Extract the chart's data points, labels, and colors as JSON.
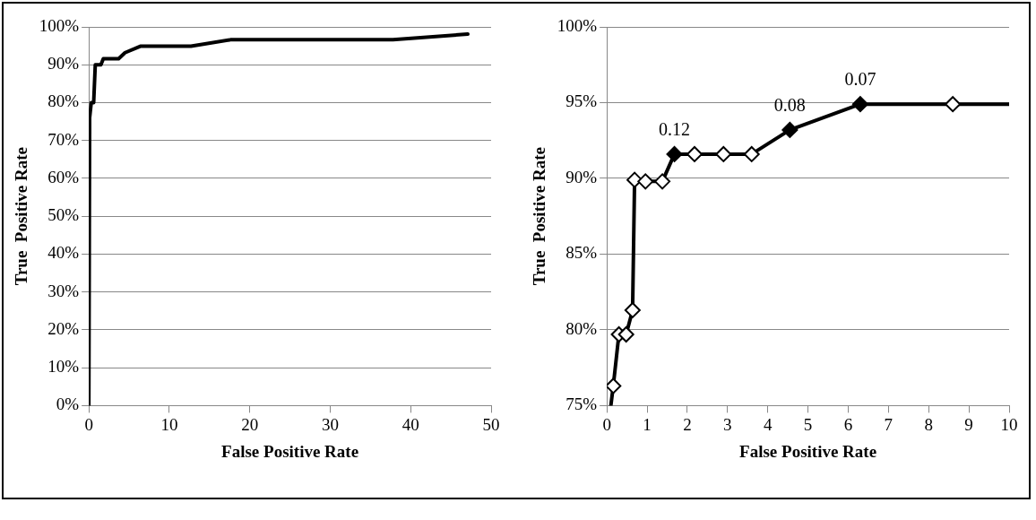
{
  "chart_data": [
    {
      "type": "line",
      "xlabel": "False Positive Rate",
      "ylabel": "True  Positive Rate",
      "xlim": [
        0,
        50
      ],
      "xticks": [
        0,
        10,
        20,
        30,
        40,
        50
      ],
      "ylim": [
        0,
        100
      ],
      "yticks": [
        {
          "value": 0,
          "label": "0%"
        },
        {
          "value": 10,
          "label": "10%"
        },
        {
          "value": 20,
          "label": "20%"
        },
        {
          "value": 30,
          "label": "30%"
        },
        {
          "value": 40,
          "label": "40%"
        },
        {
          "value": 50,
          "label": "50%"
        },
        {
          "value": 60,
          "label": "60%"
        },
        {
          "value": 70,
          "label": "70%"
        },
        {
          "value": 80,
          "label": "80%"
        },
        {
          "value": 90,
          "label": "90%"
        },
        {
          "value": 100,
          "label": "100%"
        }
      ],
      "grid": "y",
      "legend": false,
      "marker": "none",
      "line_style": "solid",
      "series": [
        {
          "color": "#000000",
          "x": [
            0,
            0.1,
            0.3,
            0.6,
            0.8,
            1.2,
            1.5,
            1.8,
            3.7,
            4.5,
            6.4,
            12.7,
            17.6,
            37.8,
            47.1
          ],
          "values": [
            0,
            76,
            80,
            80,
            90,
            90,
            90,
            91.6,
            91.6,
            93.2,
            94.9,
            94.9,
            96.6,
            96.6,
            98.1
          ]
        }
      ]
    },
    {
      "type": "line",
      "xlabel": "False Positive Rate",
      "ylabel": "True  Positive Rate",
      "xlim": [
        0,
        10
      ],
      "xticks": [
        0,
        1,
        2,
        3,
        4,
        5,
        6,
        7,
        8,
        9,
        10
      ],
      "ylim": [
        75,
        100
      ],
      "yticks": [
        {
          "value": 75,
          "label": "75%"
        },
        {
          "value": 80,
          "label": "80%"
        },
        {
          "value": 85,
          "label": "85%"
        },
        {
          "value": 90,
          "label": "90%"
        },
        {
          "value": 95,
          "label": "95%"
        },
        {
          "value": 100,
          "label": "100%"
        }
      ],
      "grid": "y",
      "legend": false,
      "line_style": "solid",
      "series": [
        {
          "color": "#000000",
          "marker": "none",
          "x": [
            0.1,
            0.16,
            0.3,
            0.48,
            0.64,
            0.69,
            0.96,
            1.38,
            1.68,
            2.18,
            2.9,
            3.6,
            4.55,
            6.3,
            8.6,
            10
          ],
          "values": [
            75,
            76.3,
            79.7,
            79.7,
            81.3,
            89.9,
            89.8,
            89.8,
            91.6,
            91.6,
            91.6,
            91.6,
            93.2,
            94.9,
            94.9,
            94.9
          ]
        },
        {
          "type": "scatter",
          "color": "#ffffff",
          "marker": "diamond",
          "x": [
            0.16,
            0.3,
            0.48,
            0.64,
            0.69,
            0.96,
            1.38,
            2.18,
            2.9,
            3.6,
            8.6
          ],
          "values": [
            76.3,
            79.7,
            79.7,
            81.3,
            89.9,
            89.8,
            89.8,
            91.6,
            91.6,
            91.6,
            94.9
          ]
        },
        {
          "type": "scatter",
          "color": "#000000",
          "marker": "diamond",
          "x": [
            1.68,
            4.55,
            6.3
          ],
          "values": [
            91.6,
            93.2,
            94.9
          ]
        }
      ],
      "annotations": [
        {
          "text": "0.12",
          "x": 1.68,
          "y": 91.6
        },
        {
          "text": "0.08",
          "x": 4.55,
          "y": 93.2
        },
        {
          "text": "0.07",
          "x": 6.3,
          "y": 94.9
        }
      ]
    }
  ]
}
